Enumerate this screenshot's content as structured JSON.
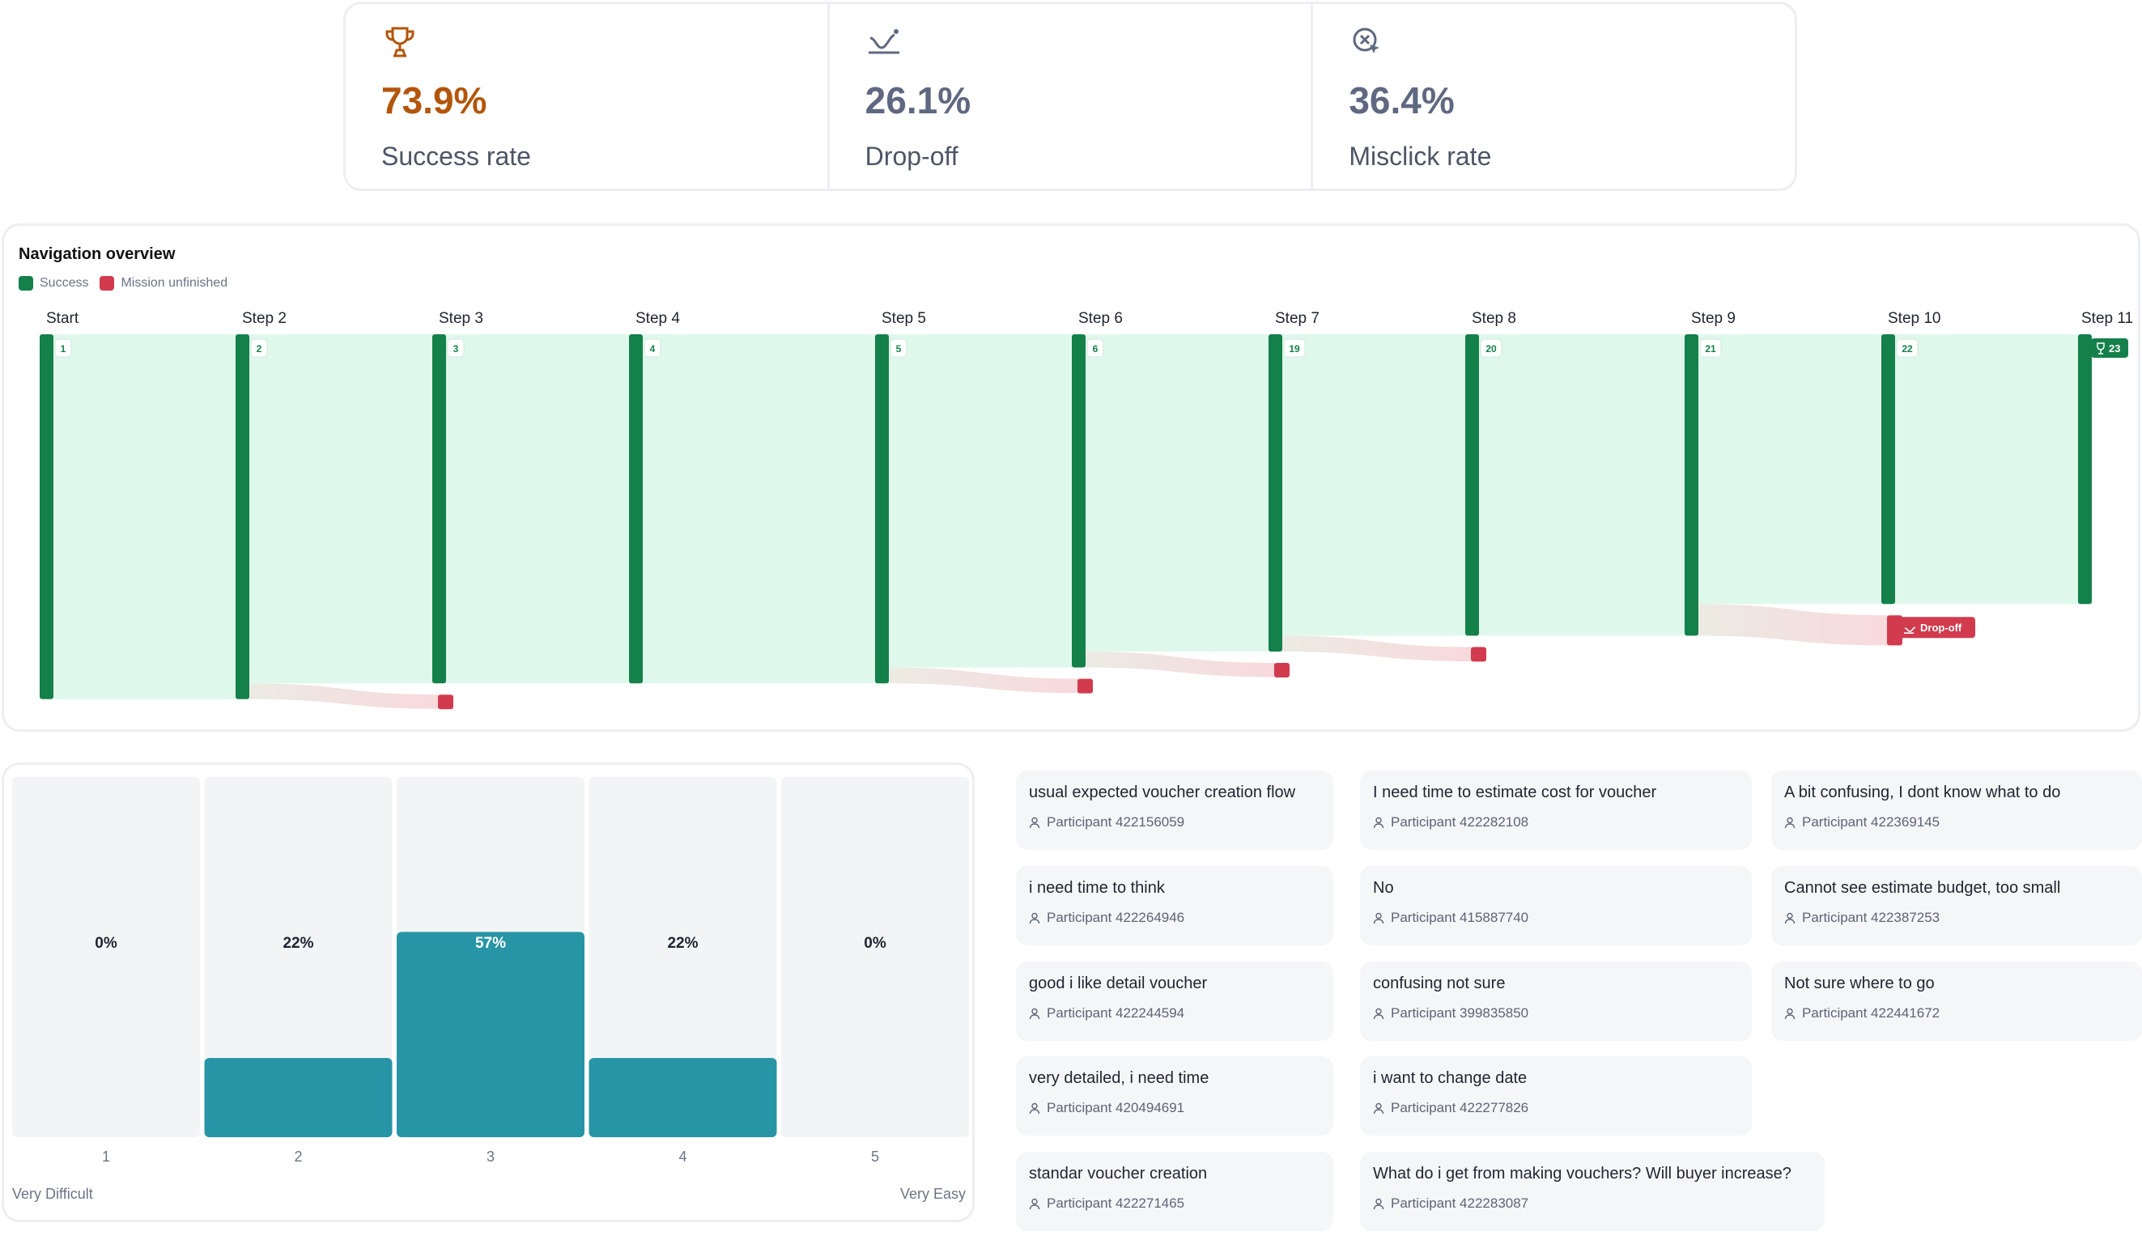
{
  "stats": [
    {
      "value": "73.9%",
      "label": "Success rate",
      "icon": "trophy-icon",
      "color": "#b2560b"
    },
    {
      "value": "26.1%",
      "label": "Drop-off",
      "icon": "drop-off-icon",
      "color": "#5f6880"
    },
    {
      "value": "36.4%",
      "label": "Misclick rate",
      "icon": "misclick-icon",
      "color": "#5f6880"
    }
  ],
  "navigation": {
    "title": "Navigation overview",
    "legend": {
      "success": "Success",
      "unfinished": "Mission unfinished"
    },
    "colors": {
      "success": "#14804a",
      "flow": "#dff8ec",
      "unfinished": "#d13b4d"
    },
    "steps": [
      {
        "label": "Start",
        "badge": "1",
        "participants": 23
      },
      {
        "label": "Step 2",
        "badge": "2",
        "participants": 23
      },
      {
        "label": "Step 3",
        "badge": "3",
        "participants": 22
      },
      {
        "label": "Step 4",
        "badge": "4",
        "participants": 22
      },
      {
        "label": "Step 5",
        "badge": "5",
        "participants": 22
      },
      {
        "label": "Step 6",
        "badge": "6",
        "participants": 21
      },
      {
        "label": "Step 7",
        "badge": "19",
        "participants": 20
      },
      {
        "label": "Step 8",
        "badge": "20",
        "participants": 19
      },
      {
        "label": "Step 9",
        "badge": "21",
        "participants": 19
      },
      {
        "label": "Step 10",
        "badge": "22",
        "participants": 17
      },
      {
        "label": "Step 11",
        "badge": "23",
        "participants": 17
      }
    ],
    "dropoffs": [
      {
        "from": 1,
        "to": 2,
        "count": 1
      },
      {
        "from": 4,
        "to": 5,
        "count": 1
      },
      {
        "from": 5,
        "to": 6,
        "count": 1
      },
      {
        "from": 6,
        "to": 7,
        "count": 1
      },
      {
        "from": 8,
        "to": 9,
        "count": 2
      }
    ],
    "dropoff_tag": "Drop-off"
  },
  "chart_data": {
    "type": "bar",
    "title": "",
    "categories": [
      "1",
      "2",
      "3",
      "4",
      "5"
    ],
    "values": [
      0,
      22,
      57,
      22,
      0
    ],
    "value_labels": [
      "0%",
      "22%",
      "57%",
      "22%",
      "0%"
    ],
    "ylim": [
      0,
      100
    ],
    "min_label": "Very Difficult",
    "max_label": "Very Easy",
    "bar_color": "#2795a6"
  },
  "comments": [
    [
      {
        "text": "usual expected voucher creation flow",
        "participant": "Participant 422156059"
      },
      {
        "text": "i need time to think",
        "participant": "Participant 422264946"
      },
      {
        "text": "good i like detail voucher",
        "participant": "Participant 422244594"
      },
      {
        "text": "very detailed, i need time",
        "participant": "Participant 420494691"
      },
      {
        "text": "standar voucher creation",
        "participant": "Participant 422271465"
      }
    ],
    [
      {
        "text": "I need time to estimate cost for voucher",
        "participant": "Participant 422282108"
      },
      {
        "text": "No",
        "participant": "Participant 415887740"
      },
      {
        "text": "confusing not sure",
        "participant": "Participant 399835850"
      },
      {
        "text": "i want to change date",
        "participant": "Participant 422277826"
      },
      {
        "text": "What do i get from making vouchers? Will buyer increase?",
        "participant": "Participant 422283087"
      }
    ],
    [
      {
        "text": "A bit confusing, I dont know what to do",
        "participant": "Participant 422369145"
      },
      {
        "text": "Cannot see estimate budget, too small",
        "participant": "Participant 422387253"
      },
      {
        "text": "Not sure where to go",
        "participant": "Participant 422441672"
      }
    ]
  ]
}
